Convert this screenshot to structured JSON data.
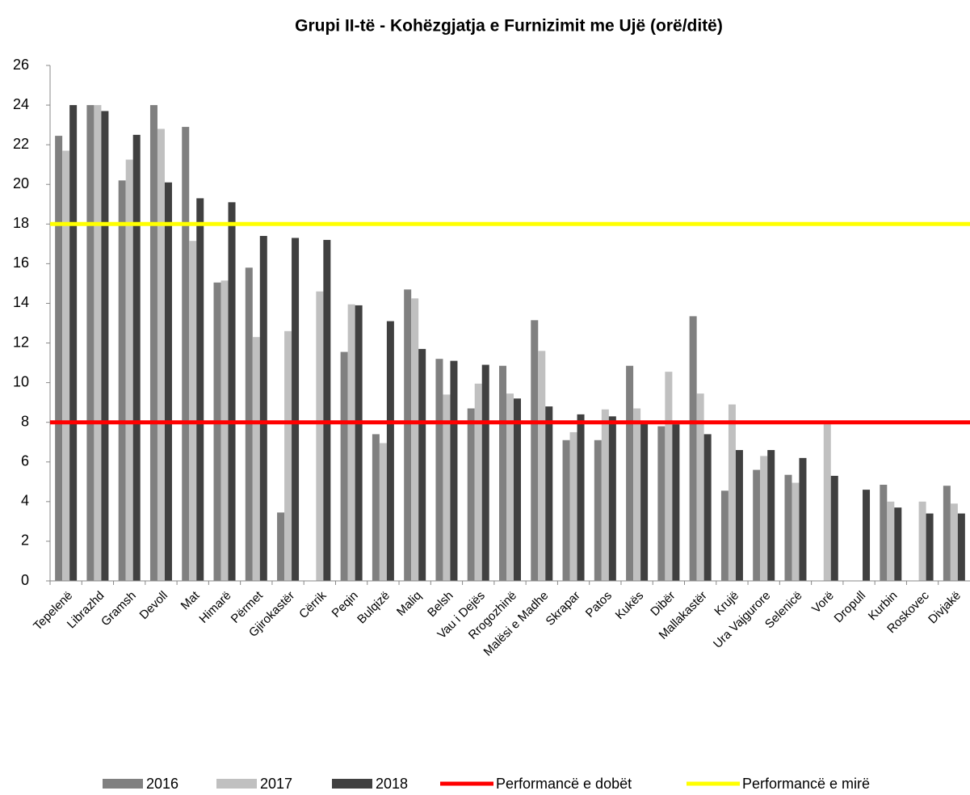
{
  "chart_data": {
    "type": "bar",
    "title": "Grupi II-të - Kohëzgjatja e Furnizimit me Ujë (orë/ditë)",
    "categories": [
      "Tepelenë",
      "Librazhd",
      "Gramsh",
      "Devoll",
      "Mat",
      "Himarë",
      "Përmet",
      "Gjirokastër",
      "Cërrik",
      "Peqin",
      "Bulqizë",
      "Maliq",
      "Belsh",
      "Vau i Dejës",
      "Rrogozhinë",
      "Malësi e Madhe",
      "Skrapar",
      "Patos",
      "Kukës",
      "Dibër",
      "Mallakastër",
      "Krujë",
      "Ura Vajgurore",
      "Selenicë",
      "Vorë",
      "Dropull",
      "Kurbin",
      "Roskovec",
      "Divjakë"
    ],
    "series": [
      {
        "name": "2016",
        "color": "#808080",
        "values": [
          22.45,
          24,
          20.2,
          24,
          22.9,
          15.05,
          15.8,
          3.45,
          null,
          11.55,
          7.4,
          14.7,
          11.2,
          8.7,
          10.85,
          13.15,
          7.1,
          7.1,
          10.85,
          7.8,
          13.35,
          4.55,
          5.6,
          5.35,
          null,
          null,
          4.85,
          null,
          4.8
        ]
      },
      {
        "name": "2017",
        "color": "#c0c0c0",
        "values": [
          21.7,
          24,
          21.25,
          22.8,
          17.15,
          15.15,
          12.3,
          12.6,
          14.6,
          13.95,
          6.95,
          14.25,
          9.4,
          9.95,
          9.45,
          11.6,
          7.5,
          8.65,
          8.7,
          10.55,
          9.45,
          8.9,
          6.3,
          4.95,
          7.9,
          null,
          4.0,
          4.0,
          3.9
        ]
      },
      {
        "name": "2018",
        "color": "#404040",
        "values": [
          24,
          23.7,
          22.5,
          20.1,
          19.3,
          19.1,
          17.4,
          17.3,
          17.2,
          13.9,
          13.1,
          11.7,
          11.1,
          10.9,
          9.2,
          8.8,
          8.4,
          8.3,
          8.0,
          7.9,
          7.4,
          6.6,
          6.6,
          6.2,
          5.3,
          4.6,
          3.7,
          3.4,
          3.4
        ]
      }
    ],
    "reference_lines": [
      {
        "name": "Performancë e dobët",
        "color": "#ff0000",
        "value": 8
      },
      {
        "name": "Performancë e mirë",
        "color": "#ffff00",
        "value": 18
      }
    ],
    "ylim": [
      0,
      26
    ],
    "yticks": [
      0,
      2,
      4,
      6,
      8,
      10,
      12,
      14,
      16,
      18,
      20,
      22,
      24,
      26
    ]
  }
}
